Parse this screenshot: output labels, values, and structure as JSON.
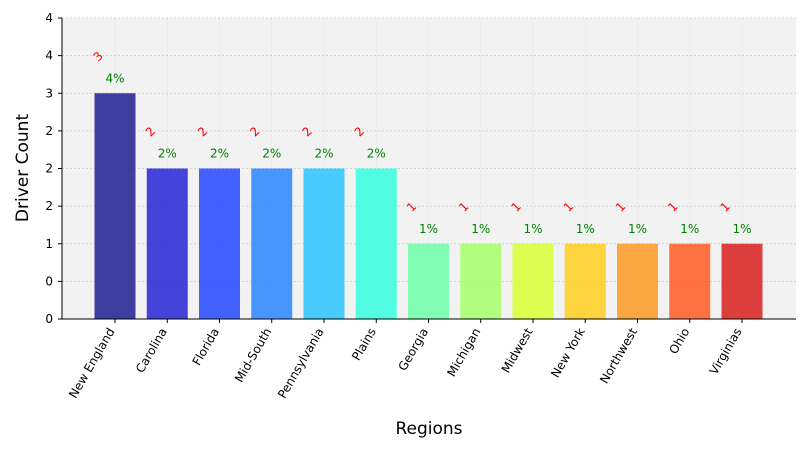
{
  "chart_data": {
    "type": "bar",
    "title": "",
    "xlabel": "Regions",
    "ylabel": "Driver Count",
    "categories": [
      "New England",
      "Carolina",
      "Florida",
      "Mid-South",
      "Pennsylvania",
      "Plains",
      "Georgia",
      "Michigan",
      "Midwest",
      "New York",
      "Northwest",
      "Ohio",
      "Virginias"
    ],
    "values": [
      3,
      2,
      2,
      2,
      2,
      2,
      1,
      1,
      1,
      1,
      1,
      1,
      1
    ],
    "count_labels": [
      "3",
      "2",
      "2",
      "2",
      "2",
      "2",
      "1",
      "1",
      "1",
      "1",
      "1",
      "1",
      "1"
    ],
    "percent_labels": [
      "4%",
      "2%",
      "2%",
      "2%",
      "2%",
      "2%",
      "1%",
      "1%",
      "1%",
      "1%",
      "1%",
      "1%",
      "1%"
    ],
    "bar_colors": [
      "#1f1f8f",
      "#2424d6",
      "#2445ff",
      "#2a86ff",
      "#2ac6ff",
      "#35ffe0",
      "#6dffa9",
      "#a6ff6a",
      "#daff35",
      "#ffce1f",
      "#ff9a24",
      "#ff5a24",
      "#d91f1f"
    ],
    "ylim": [
      0,
      4
    ],
    "ytick_values": [
      0,
      0.5,
      1,
      1.5,
      2,
      2.5,
      3,
      3.5,
      4
    ],
    "ytick_labels": [
      "0",
      "0",
      "1",
      "2",
      "2",
      "2",
      "3",
      "4",
      "4"
    ],
    "grid": true,
    "colors": {
      "plot_background": "#f2f2f2",
      "grid": "#c8c8c8",
      "count_label": "#ff0000",
      "percent_label": "#008000"
    }
  }
}
